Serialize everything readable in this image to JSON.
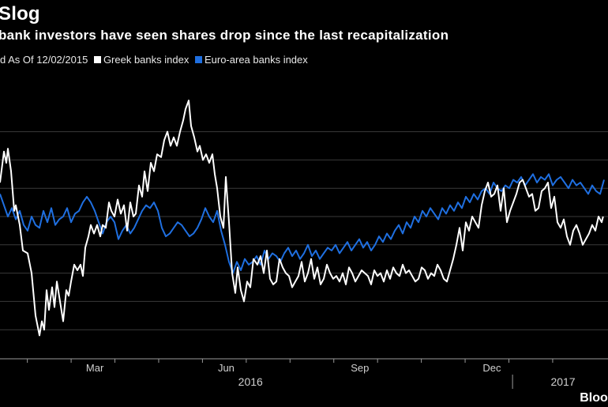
{
  "title": "Slog",
  "subtitle": "bank investors have seen shares drop since the last recapitalization",
  "legend": {
    "prefix": "d As Of 12/02/2015",
    "items": [
      {
        "label": "Greek banks index",
        "color": "#ffffff"
      },
      {
        "label": "Euro-area banks index",
        "color": "#1f6fe0"
      }
    ]
  },
  "brand": "Bloor",
  "chart_data": {
    "type": "line",
    "title": "Slog",
    "subtitle": "bank investors have seen shares drop since the last recapitalization",
    "xlabel": "",
    "ylabel": "",
    "x_range": [
      0,
      100
    ],
    "ylim": [
      0,
      100
    ],
    "grid": true,
    "grid_levels": [
      10,
      20,
      30,
      40,
      50,
      60,
      70,
      80
    ],
    "x_ticks": [
      {
        "label": "Mar",
        "x": 15.6
      },
      {
        "label": "Jun",
        "x": 37.2
      },
      {
        "label": "Sep",
        "x": 59.2
      },
      {
        "label": "Dec",
        "x": 80.9
      }
    ],
    "year_labels": [
      {
        "label": "2016",
        "x": 41.2
      },
      {
        "label": "2017",
        "x": 92.6
      }
    ],
    "year_divider_x": 84.3,
    "series": [
      {
        "name": "Greek banks index",
        "color": "#ffffff",
        "x": [
          0.0,
          0.65,
          1.04,
          1.3,
          1.82,
          2.34,
          2.6,
          3.25,
          3.77,
          4.55,
          5.19,
          5.84,
          6.49,
          6.88,
          7.27,
          7.66,
          8.05,
          8.57,
          8.96,
          9.35,
          9.87,
          10.39,
          10.91,
          11.3,
          11.69,
          12.21,
          12.73,
          13.25,
          13.64,
          14.03,
          14.55,
          14.94,
          15.45,
          15.97,
          16.49,
          16.88,
          17.4,
          17.92,
          18.31,
          18.83,
          19.35,
          19.87,
          20.39,
          20.91,
          21.43,
          21.95,
          22.34,
          22.86,
          23.38,
          23.77,
          24.29,
          24.81,
          25.32,
          25.84,
          26.49,
          27.01,
          27.53,
          28.05,
          28.57,
          29.09,
          29.61,
          30.13,
          30.52,
          31.04,
          31.43,
          31.95,
          32.47,
          32.86,
          33.38,
          33.9,
          34.42,
          34.94,
          35.32,
          35.71,
          36.23,
          36.75,
          37.14,
          37.66,
          38.18,
          38.7,
          39.09,
          39.61,
          40.13,
          40.65,
          41.17,
          41.69,
          42.34,
          42.86,
          43.38,
          43.9,
          44.42,
          44.94,
          45.45,
          45.97,
          46.49,
          47.01,
          47.53,
          48.05,
          48.57,
          49.09,
          49.61,
          50.13,
          50.65,
          51.17,
          51.69,
          52.21,
          52.73,
          53.25,
          53.77,
          54.29,
          54.81,
          55.32,
          55.84,
          56.36,
          56.88,
          57.4,
          57.92,
          58.44,
          58.96,
          59.48,
          60.0,
          60.52,
          61.04,
          61.56,
          62.08,
          62.6,
          63.12,
          63.64,
          64.16,
          64.68,
          65.19,
          65.71,
          66.23,
          66.75,
          67.27,
          67.79,
          68.31,
          68.83,
          69.35,
          69.87,
          70.39,
          70.91,
          71.43,
          71.95,
          72.47,
          72.99,
          73.51,
          74.03,
          74.55,
          75.06,
          75.58,
          76.1,
          76.62,
          77.14,
          77.66,
          78.18,
          78.7,
          79.22,
          79.74,
          80.26,
          80.78,
          81.3,
          81.82,
          82.34,
          82.86,
          83.38,
          83.9,
          84.42,
          84.94,
          85.45,
          85.97,
          86.49,
          87.01,
          87.53,
          88.05,
          88.57,
          89.09,
          89.61,
          90.13,
          90.65,
          91.17,
          91.69,
          92.21,
          92.73,
          93.25,
          93.77,
          94.29,
          94.81,
          95.32,
          95.84,
          96.36,
          96.88,
          97.4,
          97.92,
          98.44,
          98.96
        ],
        "values": [
          62,
          73,
          69,
          74,
          66,
          52,
          54,
          47,
          38,
          37,
          30,
          15,
          8,
          13,
          10,
          24,
          17,
          25,
          18,
          27,
          20,
          13,
          24,
          22,
          27,
          33,
          31,
          33,
          29,
          39,
          43,
          47,
          44,
          47,
          43,
          47,
          46,
          55,
          52,
          50,
          56,
          51,
          54,
          45,
          55,
          50,
          51,
          61,
          57,
          66,
          59,
          69,
          66,
          72,
          71,
          77,
          80,
          75,
          78,
          75,
          80,
          84,
          88,
          91,
          82,
          78,
          73,
          75,
          70,
          72,
          69,
          72,
          65,
          60,
          50,
          46,
          64,
          48,
          30,
          23,
          32,
          24,
          20,
          27,
          25,
          35,
          33,
          36,
          30,
          38,
          28,
          26,
          27,
          35,
          32,
          30,
          29,
          25,
          27,
          29,
          34,
          27,
          30,
          35,
          28,
          32,
          26,
          28,
          33,
          30,
          28,
          29,
          27,
          30,
          26,
          32,
          30,
          27,
          29,
          31,
          30,
          29,
          26,
          31,
          29,
          30,
          27,
          31,
          28,
          32,
          30,
          29,
          33,
          30,
          31,
          29,
          27,
          28,
          32,
          31,
          28,
          30,
          29,
          33,
          31,
          28,
          27,
          31,
          35,
          40,
          46,
          38,
          48,
          45,
          50,
          48,
          46,
          54,
          59,
          62,
          57,
          58,
          61,
          52,
          60,
          48,
          52,
          55,
          58,
          62,
          63,
          60,
          57,
          58,
          52,
          53,
          59,
          60,
          62,
          53,
          57,
          48,
          46,
          49,
          43,
          40,
          45,
          47,
          44,
          40,
          42,
          44,
          47,
          45,
          50,
          48
        ],
        "x_extra": [
          99.2
        ],
        "values_extra": [
          50
        ]
      },
      {
        "name": "Euro-area banks index",
        "color": "#1f6fe0",
        "x": [
          0.0,
          0.65,
          1.3,
          1.95,
          2.6,
          3.25,
          3.9,
          4.55,
          5.19,
          5.84,
          6.49,
          7.14,
          7.79,
          8.44,
          9.09,
          9.74,
          10.39,
          11.04,
          11.69,
          12.34,
          12.99,
          13.64,
          14.29,
          14.94,
          15.58,
          16.23,
          16.88,
          17.53,
          18.18,
          18.83,
          19.48,
          20.13,
          20.78,
          21.43,
          22.08,
          22.73,
          23.38,
          24.03,
          24.68,
          25.32,
          25.97,
          26.62,
          27.27,
          27.92,
          28.57,
          29.22,
          29.87,
          30.52,
          31.17,
          31.82,
          32.47,
          33.12,
          33.77,
          34.42,
          35.06,
          35.71,
          36.36,
          37.01,
          37.66,
          38.31,
          38.96,
          39.61,
          40.26,
          40.91,
          41.56,
          42.21,
          42.86,
          43.51,
          44.16,
          44.81,
          45.45,
          46.1,
          46.75,
          47.4,
          48.05,
          48.7,
          49.35,
          50.0,
          50.65,
          51.3,
          51.95,
          52.6,
          53.25,
          53.9,
          54.55,
          55.19,
          55.84,
          56.49,
          57.14,
          57.79,
          58.44,
          59.09,
          59.74,
          60.39,
          61.04,
          61.69,
          62.34,
          62.99,
          63.64,
          64.29,
          64.94,
          65.58,
          66.23,
          66.88,
          67.53,
          68.18,
          68.83,
          69.48,
          70.13,
          70.78,
          71.43,
          72.08,
          72.73,
          73.38,
          74.03,
          74.68,
          75.32,
          75.97,
          76.62,
          77.27,
          77.92,
          78.57,
          79.22,
          79.87,
          80.52,
          81.17,
          81.82,
          82.47,
          83.12,
          83.77,
          84.42,
          85.06,
          85.71,
          86.36,
          87.01,
          87.66,
          88.31,
          88.96,
          89.61,
          90.26,
          90.91,
          91.56,
          92.21,
          92.86,
          93.51,
          94.16,
          94.81,
          95.45,
          96.1,
          96.75,
          97.4,
          98.05,
          98.7,
          99.35
        ],
        "values": [
          58,
          54,
          50,
          53,
          49,
          52,
          47,
          45,
          50,
          47,
          46,
          52,
          48,
          53,
          47,
          49,
          50,
          53,
          48,
          51,
          52,
          55,
          57,
          55,
          52,
          48,
          44,
          48,
          50,
          48,
          42,
          45,
          47,
          44,
          46,
          49,
          52,
          54,
          53,
          55,
          52,
          46,
          43,
          44,
          46,
          48,
          47,
          45,
          43,
          44,
          46,
          49,
          53,
          50,
          48,
          52,
          45,
          40,
          34,
          30,
          34,
          31,
          35,
          33,
          34,
          36,
          33,
          38,
          35,
          37,
          36,
          34,
          37,
          39,
          36,
          38,
          35,
          37,
          40,
          36,
          38,
          35,
          37,
          39,
          38,
          40,
          37,
          39,
          41,
          38,
          40,
          42,
          39,
          41,
          38,
          40,
          43,
          41,
          44,
          42,
          45,
          47,
          44,
          48,
          46,
          50,
          48,
          52,
          50,
          53,
          51,
          49,
          53,
          51,
          54,
          52,
          55,
          53,
          57,
          55,
          58,
          56,
          59,
          60,
          58,
          62,
          60,
          59,
          61,
          60,
          63,
          62,
          64,
          61,
          63,
          65,
          62,
          64,
          63,
          65,
          61,
          63,
          64,
          62,
          60,
          63,
          61,
          62,
          60,
          58,
          61,
          59,
          58,
          63
        ]
      }
    ]
  }
}
